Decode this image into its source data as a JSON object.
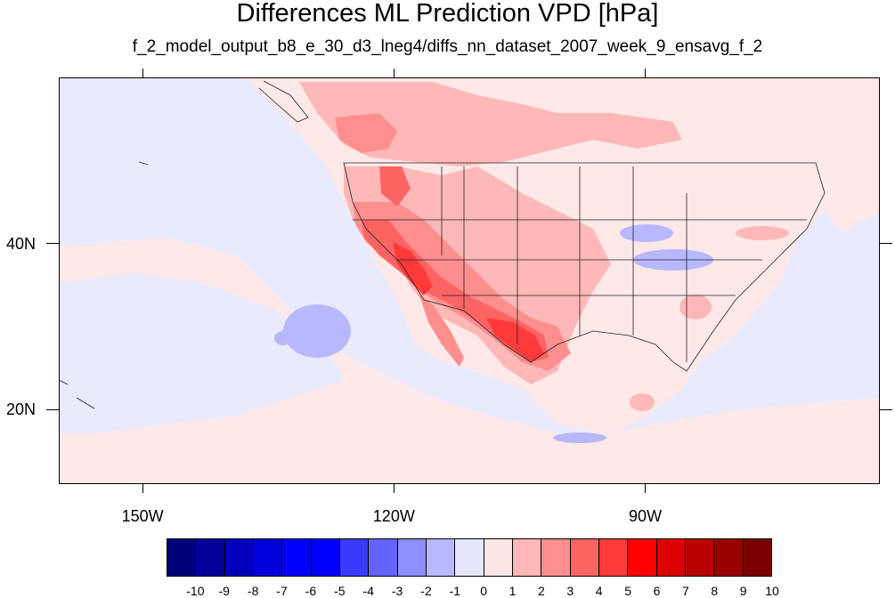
{
  "title": "Differences ML Prediction VPD [hPa]",
  "subtitle": "f_2_model_output_b8_e_30_d3_lneg4/diffs_nn_dataset_2007_week_9_ensavg_f_2",
  "map": {
    "lon_range": [
      -160,
      -62
    ],
    "lat_range": [
      11,
      60
    ],
    "x_ticks": [
      {
        "lon": -150,
        "label": "150W"
      },
      {
        "lon": -120,
        "label": "120W"
      },
      {
        "lon": -90,
        "label": "90W"
      }
    ],
    "y_ticks": [
      {
        "lat": 20,
        "label": "20N"
      },
      {
        "lat": 40,
        "label": "40N"
      }
    ],
    "colors": {
      "background_near_zero_negative": "#eaeaff",
      "near_zero_positive": "#ffe8e8"
    }
  },
  "colorbar": {
    "labels": [
      "-10",
      "-9",
      "-8",
      "-7",
      "-6",
      "-5",
      "-4",
      "-3",
      "-2",
      "-1",
      "0",
      "1",
      "2",
      "3",
      "4",
      "5",
      "6",
      "7",
      "8",
      "9",
      "10"
    ],
    "colors": [
      "#00007a",
      "#000099",
      "#0000bb",
      "#0000dd",
      "#0000ff",
      "#0000ff",
      "#3a3aff",
      "#6464ff",
      "#8e8eff",
      "#b8b8ff",
      "#e6e6ff",
      "#ffe6e6",
      "#ffb8b8",
      "#ff8e8e",
      "#ff6464",
      "#ff3a3a",
      "#ff0000",
      "#dd0000",
      "#bb0000",
      "#990000",
      "#7a0000"
    ]
  }
}
